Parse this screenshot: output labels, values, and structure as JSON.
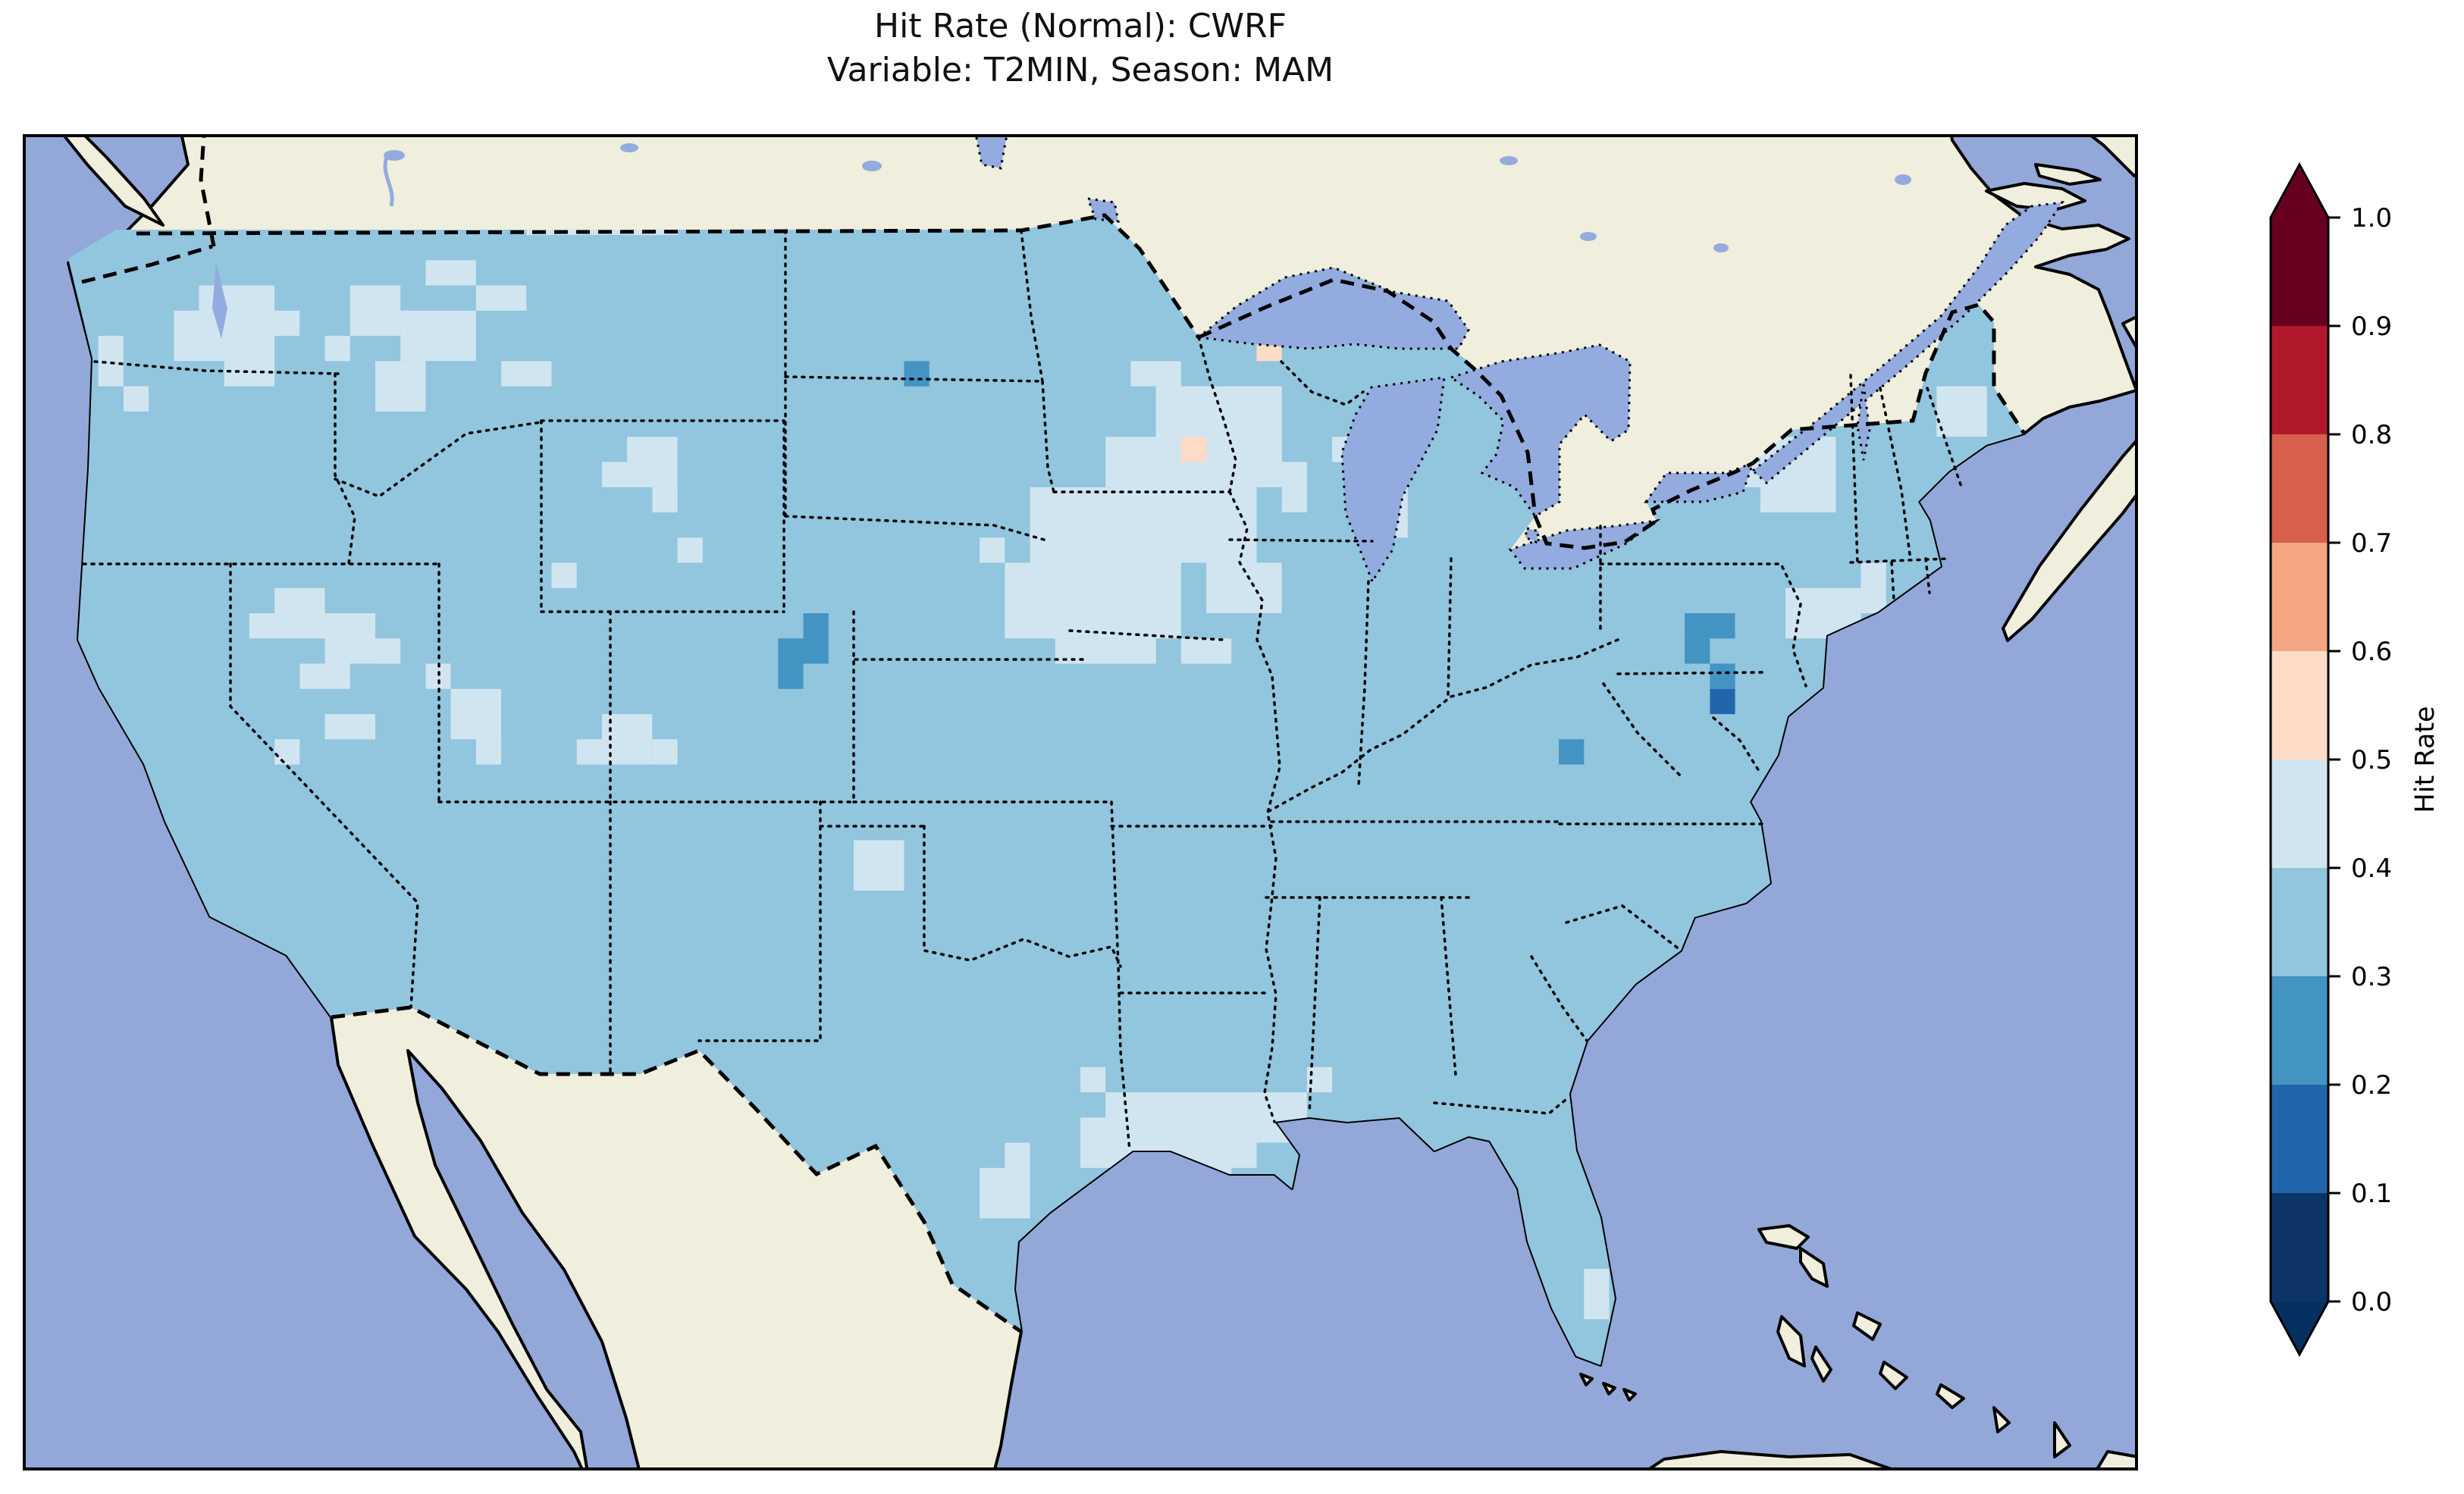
{
  "figure": {
    "title_line1": "Hit Rate (Normal): CWRF",
    "title_line2": "Variable: T2MIN, Season: MAM"
  },
  "colorbar": {
    "label": "Hit Rate",
    "ticks": [
      "1.0",
      "0.9",
      "0.8",
      "0.7",
      "0.6",
      "0.5",
      "0.4",
      "0.3",
      "0.2",
      "0.1",
      "0.0"
    ],
    "segments_top_to_bottom": [
      "#67001f",
      "#b2182b",
      "#d6604d",
      "#f4a582",
      "#fddbc7",
      "#d1e5f0",
      "#92c5de",
      "#4393c3",
      "#2166ac",
      "#0d3466"
    ],
    "extend_over_color": "#67001f",
    "extend_under_color": "#053061"
  },
  "colors": {
    "background": "#ffffff",
    "ocean": "#93a8d9",
    "land": "#f0eedc",
    "lake": "#93abdf",
    "coastline": "#000000",
    "frame": "#000000"
  },
  "chart_data": {
    "type": "heatmap",
    "title": "Hit Rate (Normal): CWRF",
    "subtitle": "Variable: T2MIN, Season: MAM",
    "metric": "Hit Rate (Normal)",
    "model": "CWRF",
    "variable": "T2MIN",
    "season": "MAM",
    "region": "Contiguous United States (lon ~126W-65W, lat ~23N-51N)",
    "colorbar_label": "Hit Rate",
    "value_range": [
      0.0,
      1.0
    ],
    "tick_step": 0.1,
    "legend_position": "right vertical colorbar with extend arrows both ends",
    "bucket_colors": {
      "b0": "#0d3466",
      "b1": "#2166ac",
      "b2": "#4393c3",
      "b3": "#92c5de",
      "b4": "#d1e5f0",
      "b5": "#fddbc7"
    },
    "bucket_ranges": {
      "b0": "0.0-0.1",
      "b1": "0.1-0.2",
      "b2": "0.2-0.3",
      "b3": "0.3-0.4",
      "b4": "0.4-0.5",
      "b5": "0.5-0.6"
    },
    "base_bucket": "b3",
    "summary": "Hit rate over CONUS is predominantly 0.3-0.4 (light blue) with 0.4-0.5 (pale blue) patches in eastern Washington, Idaho/Montana, the Great Basin, Wyoming, southwest Colorado, eastern New Mexico, the upper Midwest (MN/WI/IA), lower Michigan, upstate New York, northern Maine, the NYC coastal area, the Gulf Coast (TX/LA/MS) and south Florida; isolated 0.2-0.3 cells in central North Dakota, the Colorado-Nebraska border, south-central Pennsylvania, Maryland/DC and the Ohio Valley; one 0.1-0.2 cell near Washington DC; two 0.5-0.6 cells in northern Minnesota/Wisconsin.",
    "grid": {
      "cols": 84,
      "rows": 53
    },
    "regions": [
      {
        "bucket": "b4",
        "rects": [
          [
            3,
            8,
            1,
            2
          ],
          [
            4,
            10,
            1,
            1
          ],
          [
            7,
            6,
            3,
            2
          ],
          [
            6,
            7,
            2,
            2
          ],
          [
            8,
            8,
            2,
            2
          ],
          [
            10,
            7,
            1,
            1
          ],
          [
            13,
            6,
            2,
            2
          ],
          [
            15,
            7,
            3,
            2
          ],
          [
            14,
            9,
            2,
            2
          ],
          [
            16,
            5,
            2,
            1
          ],
          [
            18,
            6,
            2,
            1
          ],
          [
            12,
            8,
            1,
            1
          ],
          [
            21,
            2,
            3,
            2
          ],
          [
            24,
            3,
            2,
            1
          ],
          [
            20,
            3,
            1,
            1
          ],
          [
            19,
            9,
            2,
            1
          ],
          [
            24,
            12,
            2,
            2
          ],
          [
            23,
            13,
            1,
            1
          ],
          [
            25,
            14,
            1,
            1
          ],
          [
            26,
            16,
            1,
            1
          ],
          [
            21,
            17,
            1,
            1
          ],
          [
            10,
            18,
            2,
            2
          ],
          [
            12,
            19,
            2,
            2
          ],
          [
            9,
            19,
            1,
            1
          ],
          [
            14,
            20,
            1,
            1
          ],
          [
            11,
            21,
            2,
            1
          ],
          [
            12,
            23,
            2,
            1
          ],
          [
            10,
            24,
            1,
            1
          ],
          [
            17,
            22,
            2,
            2
          ],
          [
            16,
            21,
            1,
            1
          ],
          [
            18,
            24,
            1,
            1
          ],
          [
            23,
            23,
            2,
            2
          ],
          [
            22,
            24,
            1,
            1
          ],
          [
            25,
            24,
            1,
            1
          ],
          [
            33,
            28,
            2,
            2
          ],
          [
            44,
            9,
            2,
            1
          ],
          [
            45,
            10,
            5,
            3
          ],
          [
            43,
            12,
            7,
            2
          ],
          [
            40,
            14,
            9,
            3
          ],
          [
            39,
            17,
            7,
            3
          ],
          [
            41,
            20,
            4,
            1
          ],
          [
            47,
            17,
            3,
            2
          ],
          [
            50,
            13,
            1,
            2
          ],
          [
            38,
            16,
            1,
            1
          ],
          [
            46,
            20,
            2,
            1
          ],
          [
            52,
            12,
            1,
            1
          ],
          [
            53,
            13,
            2,
            2
          ],
          [
            54,
            15,
            1,
            1
          ],
          [
            69,
            12,
            3,
            3
          ],
          [
            68,
            13,
            1,
            1
          ],
          [
            72,
            10,
            1,
            1
          ],
          [
            70,
            18,
            3,
            2
          ],
          [
            73,
            17,
            1,
            2
          ],
          [
            76,
            10,
            2,
            2
          ],
          [
            43,
            38,
            6,
            3
          ],
          [
            42,
            39,
            2,
            2
          ],
          [
            45,
            41,
            3,
            1
          ],
          [
            49,
            38,
            2,
            2
          ],
          [
            51,
            37,
            1,
            1
          ],
          [
            42,
            37,
            1,
            1
          ],
          [
            38,
            41,
            2,
            2
          ],
          [
            39,
            40,
            1,
            1
          ],
          [
            62,
            45,
            1,
            2
          ],
          [
            63,
            47,
            1,
            1
          ]
        ]
      },
      {
        "bucket": "b2",
        "rects": [
          [
            35,
            9,
            1,
            1
          ],
          [
            31,
            19,
            1,
            1
          ],
          [
            30,
            20,
            2,
            1
          ],
          [
            30,
            21,
            1,
            1
          ],
          [
            66,
            19,
            2,
            1
          ],
          [
            66,
            20,
            1,
            1
          ],
          [
            61,
            24,
            1,
            1
          ],
          [
            67,
            21,
            1,
            1
          ]
        ]
      },
      {
        "bucket": "b1",
        "rects": [
          [
            67,
            22,
            1,
            1
          ]
        ]
      },
      {
        "bucket": "b5",
        "rects": [
          [
            49,
            8,
            1,
            1
          ],
          [
            46,
            12,
            1,
            1
          ]
        ]
      }
    ]
  }
}
